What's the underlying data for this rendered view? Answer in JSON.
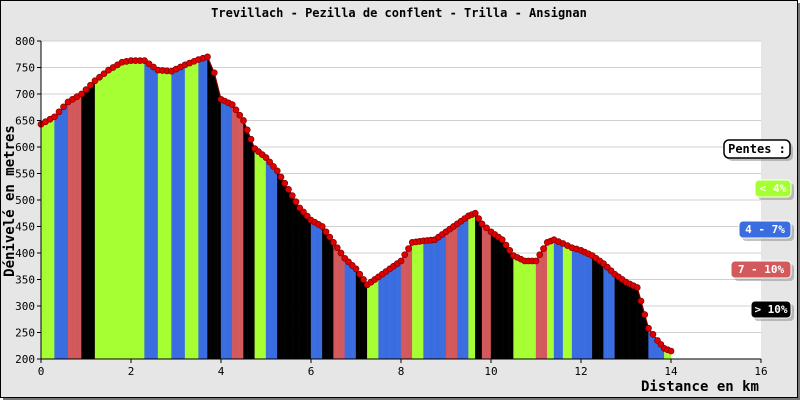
{
  "chart_data": {
    "type": "area",
    "title": "Trevillach - Pezilla de conflent - Trilla - Ansignan",
    "xlabel": "Distance en km",
    "ylabel": "Dénivelé en metres",
    "xlim": [
      0,
      16
    ],
    "ylim": [
      200,
      800
    ],
    "xticks": [
      0,
      2,
      4,
      6,
      8,
      10,
      12,
      14,
      16
    ],
    "yticks": [
      200,
      250,
      300,
      350,
      400,
      450,
      500,
      550,
      600,
      650,
      700,
      750,
      800
    ],
    "grid": true,
    "series": [
      {
        "x": [
          0,
          0.3,
          0.6,
          0.9,
          1.2,
          1.5,
          1.8,
          2.0,
          2.3,
          2.6,
          2.9,
          3.2,
          3.5,
          3.7,
          3.85,
          4.0,
          4.25,
          4.5,
          4.75,
          5.0,
          5.25,
          5.5,
          5.75,
          6.0,
          6.25,
          6.5,
          6.75,
          7.0,
          7.25,
          7.5,
          7.75,
          8.0,
          8.25,
          8.5,
          8.75,
          9.0,
          9.25,
          9.5,
          9.65,
          9.8,
          10.0,
          10.25,
          10.5,
          10.75,
          11.0,
          11.25,
          11.4,
          11.6,
          11.8,
          12.0,
          12.25,
          12.5,
          12.75,
          13.0,
          13.25,
          13.5,
          13.7,
          13.85,
          14.0
        ],
        "y": [
          643,
          657,
          685,
          700,
          725,
          745,
          760,
          763,
          763,
          745,
          743,
          755,
          765,
          770,
          740,
          690,
          680,
          650,
          597,
          580,
          555,
          520,
          485,
          462,
          450,
          420,
          390,
          370,
          340,
          355,
          370,
          385,
          420,
          423,
          425,
          440,
          455,
          470,
          475,
          455,
          440,
          425,
          395,
          385,
          385,
          420,
          425,
          418,
          410,
          405,
          395,
          380,
          360,
          345,
          335,
          258,
          235,
          220,
          215
        ],
        "slope_colors": [
          "#a6ff33",
          "#3a6de0",
          "#d2595c",
          "#000000",
          "#a6ff33",
          "#a6ff33",
          "#a6ff33",
          "#a6ff33",
          "#3a6de0",
          "#a6ff33",
          "#3a6de0",
          "#a6ff33",
          "#3a6de0",
          "#000000",
          "#000000",
          "#3a6de0",
          "#d2595c",
          "#000000",
          "#a6ff33",
          "#3a6de0",
          "#000000",
          "#000000",
          "#000000",
          "#3a6de0",
          "#000000",
          "#d2595c",
          "#3a6de0",
          "#000000",
          "#a6ff33",
          "#3a6de0",
          "#3a6de0",
          "#d2595c",
          "#a6ff33",
          "#3a6de0",
          "#3a6de0",
          "#d2595c",
          "#3a6de0",
          "#a6ff33",
          "#000000",
          "#d2595c",
          "#000000",
          "#000000",
          "#a6ff33",
          "#a6ff33",
          "#d2595c",
          "#a6ff33",
          "#3a6de0",
          "#a6ff33",
          "#3a6de0",
          "#3a6de0",
          "#000000",
          "#3a6de0",
          "#000000",
          "#000000",
          "#000000",
          "#3a6de0",
          "#3a6de0",
          "#a6ff33"
        ]
      }
    ],
    "legend": {
      "placement": "right",
      "title": "Pentes :",
      "entries": [
        {
          "label": "< 4%",
          "color": "#a6ff33"
        },
        {
          "label": "4 - 7%",
          "color": "#3a6de0"
        },
        {
          "label": "7 - 10%",
          "color": "#d2595c"
        },
        {
          "label": "> 10%",
          "color": "#000000"
        }
      ]
    },
    "colors": {
      "marker": "#e00000",
      "plot_background": "#ffffff",
      "frame_background": "#e6e6e6",
      "grid": "#d0d0d0"
    }
  }
}
